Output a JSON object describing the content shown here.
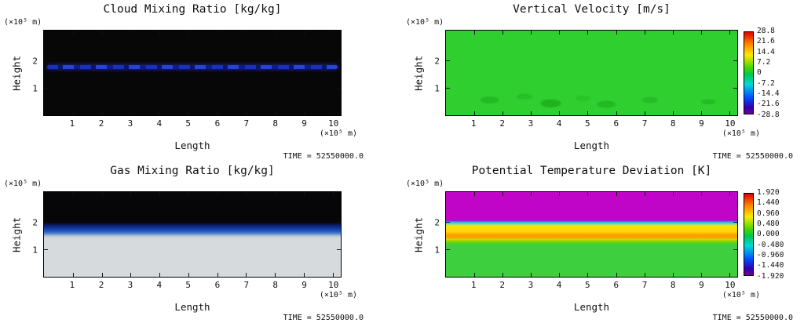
{
  "time_label": "TIME = 52550000.0",
  "axes": {
    "x_label": "Length",
    "y_label": "Height",
    "x_unit": "(×10⁵ m)",
    "y_unit": "(×10⁵ m)",
    "x_ticks": [
      "1",
      "2",
      "3",
      "4",
      "5",
      "6",
      "7",
      "8",
      "9",
      "10"
    ],
    "y_ticks": [
      "1",
      "2"
    ]
  },
  "panels": [
    {
      "title": "Cloud Mixing Ratio [kg/kg]"
    },
    {
      "title": "Vertical Velocity [m/s]",
      "colorbar_ticks": [
        "28.8",
        "21.6",
        "14.4",
        "7.2",
        "0",
        "-7.2",
        "-14.4",
        "-21.6",
        "-28.8"
      ]
    },
    {
      "title": "Gas Mixing Ratio [kg/kg]"
    },
    {
      "title": "Potential Temperature Deviation [K]",
      "colorbar_ticks": [
        "1.920",
        "1.440",
        "0.960",
        "0.480",
        "0.000",
        "-0.480",
        "-0.960",
        "-1.440",
        "-1.920"
      ]
    }
  ],
  "colors": {
    "background": "#ffffff",
    "axis_text": "#111111",
    "cloud_background": "#070708",
    "cloud_layer_blue": "#1b2cc8",
    "velocity_green": "#2fcf2f",
    "gas_black": "#060608",
    "gas_blue": "#1e55c0",
    "gas_light_gray": "#d7dadc",
    "pt_magenta": "#c004c8",
    "pt_cyan": "#2fb6e8",
    "pt_yellow": "#ffe000",
    "pt_orange": "#ff9c00",
    "pt_green": "#3ecf3e"
  },
  "chart_data": [
    {
      "type": "heatmap",
      "title": "Cloud Mixing Ratio [kg/kg]",
      "xlabel": "Length",
      "ylabel": "Height",
      "x_unit": "×10⁵ m",
      "y_unit": "×10⁵ m",
      "xlim": [
        0,
        10.3
      ],
      "ylim": [
        0,
        3.1
      ],
      "x_ticks": [
        1,
        2,
        3,
        4,
        5,
        6,
        7,
        8,
        9,
        10
      ],
      "y_ticks": [
        1,
        2
      ],
      "time": "TIME = 52550000.0",
      "colorbar": null,
      "field_summary": "Near-zero (black) field everywhere except a thin, patchy dark-blue cloud layer spanning the full horizontal domain at height ≈1.8–1.95 ×10⁵ m",
      "features": [
        {
          "name": "cloud-layer",
          "height_range": [
            1.8,
            1.95
          ],
          "length_range": [
            0,
            10.3
          ],
          "appearance": "broken blue streak"
        }
      ]
    },
    {
      "type": "heatmap",
      "title": "Vertical Velocity [m/s]",
      "xlabel": "Length",
      "ylabel": "Height",
      "x_unit": "×10⁵ m",
      "y_unit": "×10⁵ m",
      "xlim": [
        0,
        10.3
      ],
      "ylim": [
        0,
        3.1
      ],
      "x_ticks": [
        1,
        2,
        3,
        4,
        5,
        6,
        7,
        8,
        9,
        10
      ],
      "y_ticks": [
        1,
        2
      ],
      "time": "TIME = 52550000.0",
      "colorbar": {
        "palette": "rainbow",
        "min": -28.8,
        "max": 28.8,
        "ticks": [
          28.8,
          21.6,
          14.4,
          7.2,
          0,
          -7.2,
          -14.4,
          -21.6,
          -28.8
        ],
        "position": "right"
      },
      "field_summary": "Uniform green field, w ≈ 0 m/s everywhere, with faint darker-green convective perturbations (|w| ≲ 5 m/s) scattered below height ≈1 ×10⁵ m"
    },
    {
      "type": "heatmap",
      "title": "Gas Mixing Ratio [kg/kg]",
      "xlabel": "Length",
      "ylabel": "Height",
      "x_unit": "×10⁵ m",
      "y_unit": "×10⁵ m",
      "xlim": [
        0,
        10.3
      ],
      "ylim": [
        0,
        3.1
      ],
      "x_ticks": [
        1,
        2,
        3,
        4,
        5,
        6,
        7,
        8,
        9,
        10
      ],
      "y_ticks": [
        1,
        2
      ],
      "time": "TIME = 52550000.0",
      "colorbar": null,
      "field_summary": "Horizontally uniform stratified field: black (minimum, ≈0) above ≈1.8 ×10⁵ m, blue gradient transition between ≈1.35 and ≈1.8, light gray (maximum mixing ratio) below ≈1.35 ×10⁵ m",
      "layers": [
        {
          "height_range": [
            1.8,
            3.1
          ],
          "color": "black",
          "value": "minimum"
        },
        {
          "height_range": [
            1.35,
            1.8
          ],
          "color": "blue gradient",
          "value": "transition"
        },
        {
          "height_range": [
            0,
            1.35
          ],
          "color": "light gray",
          "value": "maximum"
        }
      ]
    },
    {
      "type": "heatmap",
      "title": "Potential Temperature Deviation [K]",
      "xlabel": "Length",
      "ylabel": "Height",
      "x_unit": "×10⁵ m",
      "y_unit": "×10⁵ m",
      "xlim": [
        0,
        10.3
      ],
      "ylim": [
        0,
        3.1
      ],
      "x_ticks": [
        1,
        2,
        3,
        4,
        5,
        6,
        7,
        8,
        9,
        10
      ],
      "y_ticks": [
        1,
        2
      ],
      "time": "TIME = 52550000.0",
      "colorbar": {
        "palette": "rainbow",
        "min": -1.92,
        "max": 1.92,
        "ticks": [
          1.92,
          1.44,
          0.96,
          0.48,
          0.0,
          -0.48,
          -0.96,
          -1.44,
          -1.92
        ],
        "position": "right"
      },
      "field_summary": "Horizontally uniform stratified field: magenta/purple layer (extreme deviation ≈ ±1.9 K, off-scale) above ≈2.05 ×10⁵ m, thin cyan line at ≈2.0, yellow band with orange core (≈ +0.5 to +1.0 K) between ≈1.3 and ≈2.0, green (≈0 K) below ≈1.3 ×10⁵ m",
      "layers": [
        {
          "height_range": [
            2.05,
            3.1
          ],
          "color": "magenta"
        },
        {
          "height_range": [
            1.95,
            2.05
          ],
          "color": "cyan"
        },
        {
          "height_range": [
            1.3,
            1.95
          ],
          "color": "yellow-orange"
        },
        {
          "height_range": [
            0,
            1.3
          ],
          "color": "green"
        }
      ]
    }
  ]
}
